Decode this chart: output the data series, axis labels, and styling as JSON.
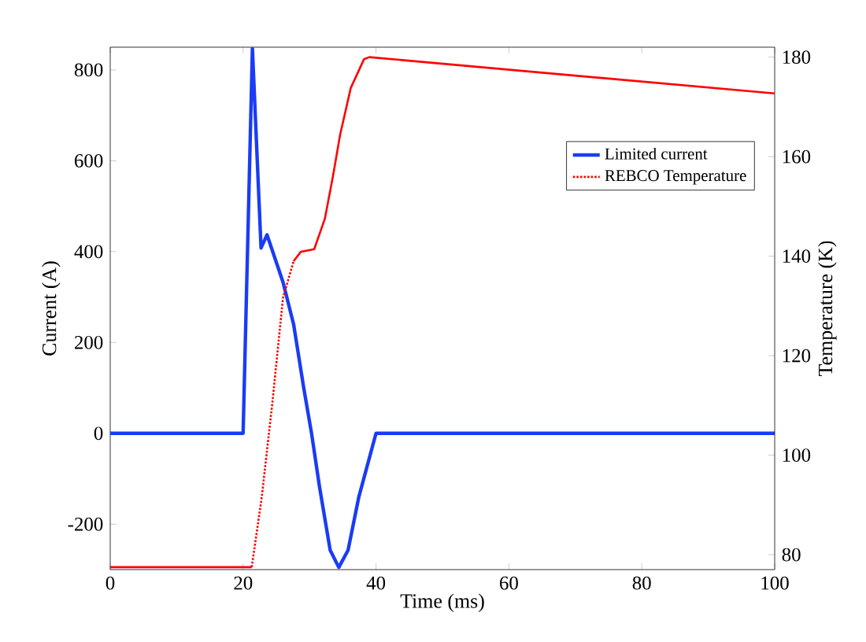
{
  "chart_data": {
    "type": "line",
    "xlabel": "Time (ms)",
    "ylabel": "Current (A)",
    "y2label": "Temperature (K)",
    "xlim": [
      0,
      100
    ],
    "xticks": [
      0,
      20,
      40,
      60,
      80,
      100
    ],
    "ylim": [
      -300,
      850
    ],
    "yticks": [
      -200,
      0,
      200,
      400,
      600,
      800
    ],
    "y2lim": [
      77,
      182
    ],
    "y2ticks": [
      80,
      100,
      120,
      140,
      160,
      180
    ],
    "legend": "top right",
    "grid": false,
    "marker": "none",
    "series": [
      {
        "name": "Limited current",
        "color": "#1a3cf5",
        "line_style": "solid",
        "x": [
          0,
          20,
          21.4,
          22.7,
          23.6,
          26,
          27.6,
          29.1,
          30.3,
          31.5,
          33.1,
          34.4,
          35.8,
          37.4,
          40,
          100
        ],
        "values": [
          0,
          0,
          847,
          408,
          437,
          333,
          240,
          102,
          0,
          -118,
          -257,
          -295,
          -257,
          -141,
          0,
          0
        ]
      },
      {
        "name": "REBCO Temperature",
        "color": "#ff0000",
        "axis": "y2",
        "line_style": "dotted",
        "x": [
          21.3,
          22.8,
          24.4,
          26,
          27.6
        ],
        "values": [
          77.5,
          91.5,
          110.5,
          131.6,
          139
        ]
      },
      {
        "color": "#ff0000",
        "axis": "y2",
        "line_style": "solid",
        "x": [
          0,
          21.3,
          24,
          27.6,
          28.7,
          30.7,
          32.3,
          33.5,
          34.6,
          36.2,
          38.2,
          39,
          100
        ],
        "values": [
          77.5,
          77.5,
          null,
          139,
          140.9,
          141.4,
          147.5,
          155.9,
          164.4,
          173.8,
          179.6,
          180,
          172.7
        ]
      }
    ]
  }
}
